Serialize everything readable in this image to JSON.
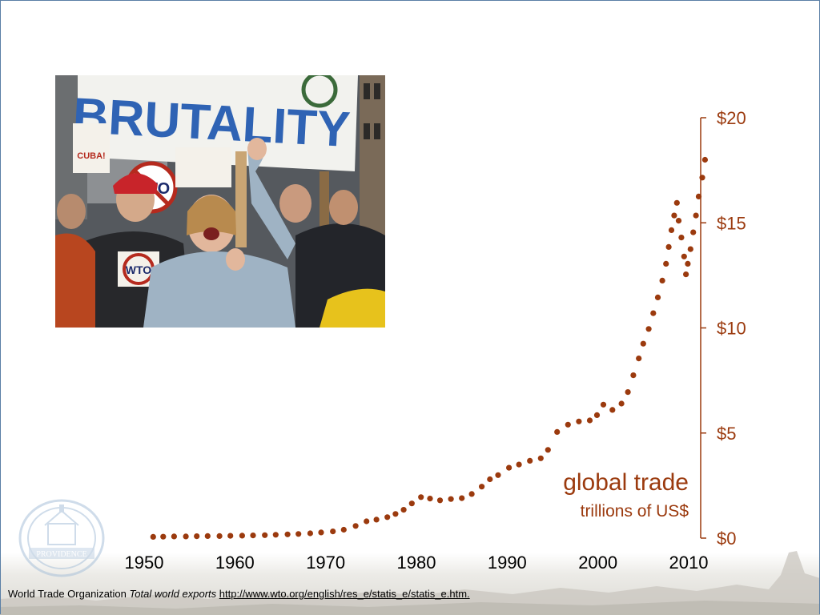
{
  "photo": {
    "description": "",
    "banner_text": "BRUTALITY",
    "sign_texts": [
      "WTO",
      "CUBA!",
      "WTO"
    ]
  },
  "seal": {
    "text": "PROVIDENCE"
  },
  "chart_data": {
    "type": "scatter",
    "title": "global trade",
    "subtitle": "trillions of US$",
    "xlabel": "",
    "ylabel": "",
    "xlim": [
      1950,
      2012
    ],
    "ylim": [
      0,
      20
    ],
    "x_ticks": [
      1950,
      1960,
      1970,
      1980,
      1990,
      2000,
      2010
    ],
    "y_ticks": [
      0,
      5,
      10,
      15,
      20
    ],
    "y_tick_labels": [
      "$0",
      "$5",
      "$10",
      "$15",
      "$20"
    ],
    "y_axis_position": "right",
    "grid": false,
    "marker_color": "#9b3a0e",
    "points": [
      [
        1951.0,
        0.06
      ],
      [
        1952.1,
        0.07
      ],
      [
        1953.3,
        0.08
      ],
      [
        1954.6,
        0.08
      ],
      [
        1955.8,
        0.09
      ],
      [
        1957.0,
        0.1
      ],
      [
        1958.3,
        0.1
      ],
      [
        1959.5,
        0.11
      ],
      [
        1960.8,
        0.12
      ],
      [
        1962.0,
        0.13
      ],
      [
        1963.3,
        0.14
      ],
      [
        1964.5,
        0.16
      ],
      [
        1965.8,
        0.18
      ],
      [
        1967.0,
        0.2
      ],
      [
        1968.3,
        0.23
      ],
      [
        1969.5,
        0.27
      ],
      [
        1970.8,
        0.32
      ],
      [
        1972.0,
        0.4
      ],
      [
        1973.3,
        0.58
      ],
      [
        1974.5,
        0.8
      ],
      [
        1975.6,
        0.88
      ],
      [
        1976.8,
        1.0
      ],
      [
        1977.7,
        1.15
      ],
      [
        1978.6,
        1.35
      ],
      [
        1979.5,
        1.65
      ],
      [
        1980.5,
        1.95
      ],
      [
        1981.5,
        1.88
      ],
      [
        1982.6,
        1.8
      ],
      [
        1983.8,
        1.86
      ],
      [
        1985.0,
        1.9
      ],
      [
        1986.1,
        2.1
      ],
      [
        1987.2,
        2.45
      ],
      [
        1988.1,
        2.8
      ],
      [
        1989.0,
        3.0
      ],
      [
        1990.2,
        3.35
      ],
      [
        1991.3,
        3.5
      ],
      [
        1992.5,
        3.68
      ],
      [
        1993.7,
        3.8
      ],
      [
        1994.5,
        4.2
      ],
      [
        1995.5,
        5.05
      ],
      [
        1996.7,
        5.4
      ],
      [
        1997.9,
        5.55
      ],
      [
        1999.1,
        5.6
      ],
      [
        1999.9,
        5.85
      ],
      [
        2000.6,
        6.35
      ],
      [
        2001.6,
        6.1
      ],
      [
        2002.6,
        6.4
      ],
      [
        2003.3,
        6.95
      ],
      [
        2003.9,
        7.75
      ],
      [
        2004.5,
        8.55
      ],
      [
        2005.0,
        9.25
      ],
      [
        2005.6,
        9.95
      ],
      [
        2006.1,
        10.7
      ],
      [
        2006.6,
        11.45
      ],
      [
        2007.1,
        12.25
      ],
      [
        2007.5,
        13.05
      ],
      [
        2007.8,
        13.85
      ],
      [
        2008.1,
        14.65
      ],
      [
        2008.4,
        15.35
      ],
      [
        2008.7,
        15.95
      ],
      [
        2008.9,
        15.1
      ],
      [
        2009.2,
        14.3
      ],
      [
        2009.5,
        13.4
      ],
      [
        2009.7,
        12.55
      ],
      [
        2009.9,
        13.05
      ],
      [
        2010.2,
        13.75
      ],
      [
        2010.5,
        14.55
      ],
      [
        2010.8,
        15.35
      ],
      [
        2011.1,
        16.25
      ],
      [
        2011.5,
        17.15
      ],
      [
        2011.8,
        18.0
      ]
    ]
  },
  "source": {
    "org": "World Trade Organization",
    "title": "Total world exports",
    "url": "http://www.wto.org/english/res_e/statis_e/statis_e.htm."
  }
}
